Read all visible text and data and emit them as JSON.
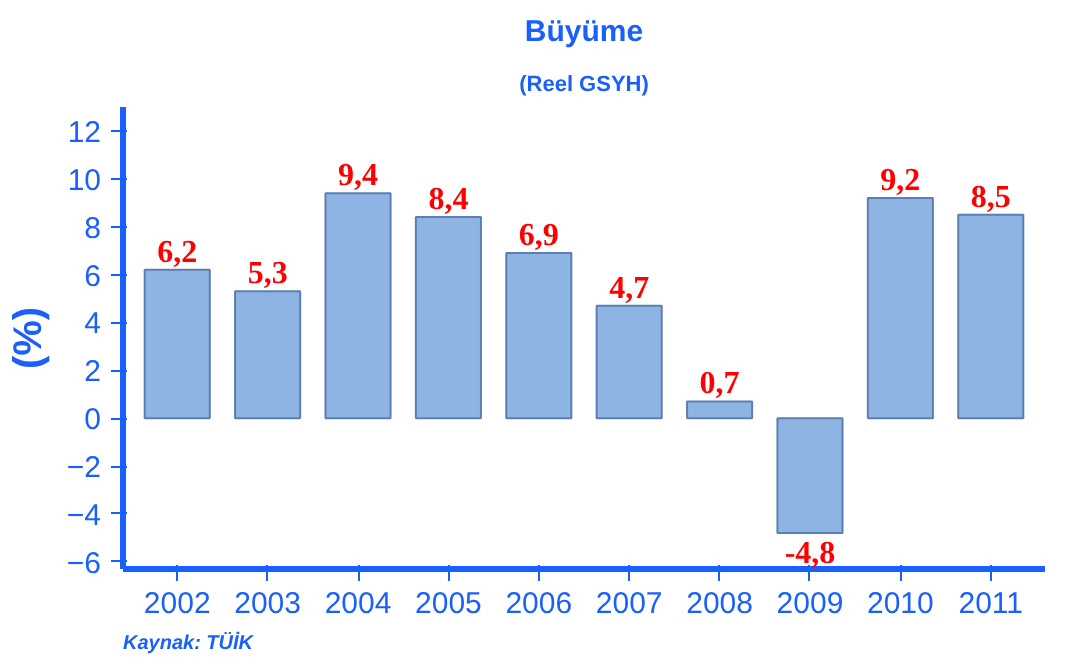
{
  "chart_data": {
    "type": "bar",
    "title": "Büyüme",
    "subtitle": "(Reel GSYH)",
    "ylabel": "(%)",
    "categories": [
      "2002",
      "2003",
      "2004",
      "2005",
      "2006",
      "2007",
      "2008",
      "2009",
      "2010",
      "2011"
    ],
    "values": [
      6.2,
      5.3,
      9.4,
      8.4,
      6.9,
      4.7,
      0.7,
      -4.8,
      9.2,
      8.5
    ],
    "value_labels": [
      "6,2",
      "5,3",
      "9,4",
      "8,4",
      "6,9",
      "4,7",
      "0,7",
      "-4,8",
      "9,2",
      "8,5"
    ],
    "color": "#8db4e2",
    "ylim": [
      -6.3,
      13
    ],
    "yticks": [
      -6,
      -4,
      -2,
      0,
      2,
      4,
      6,
      8,
      10,
      12
    ],
    "grid": false,
    "annotations": [
      "Kaynak: TÜİK"
    ]
  }
}
